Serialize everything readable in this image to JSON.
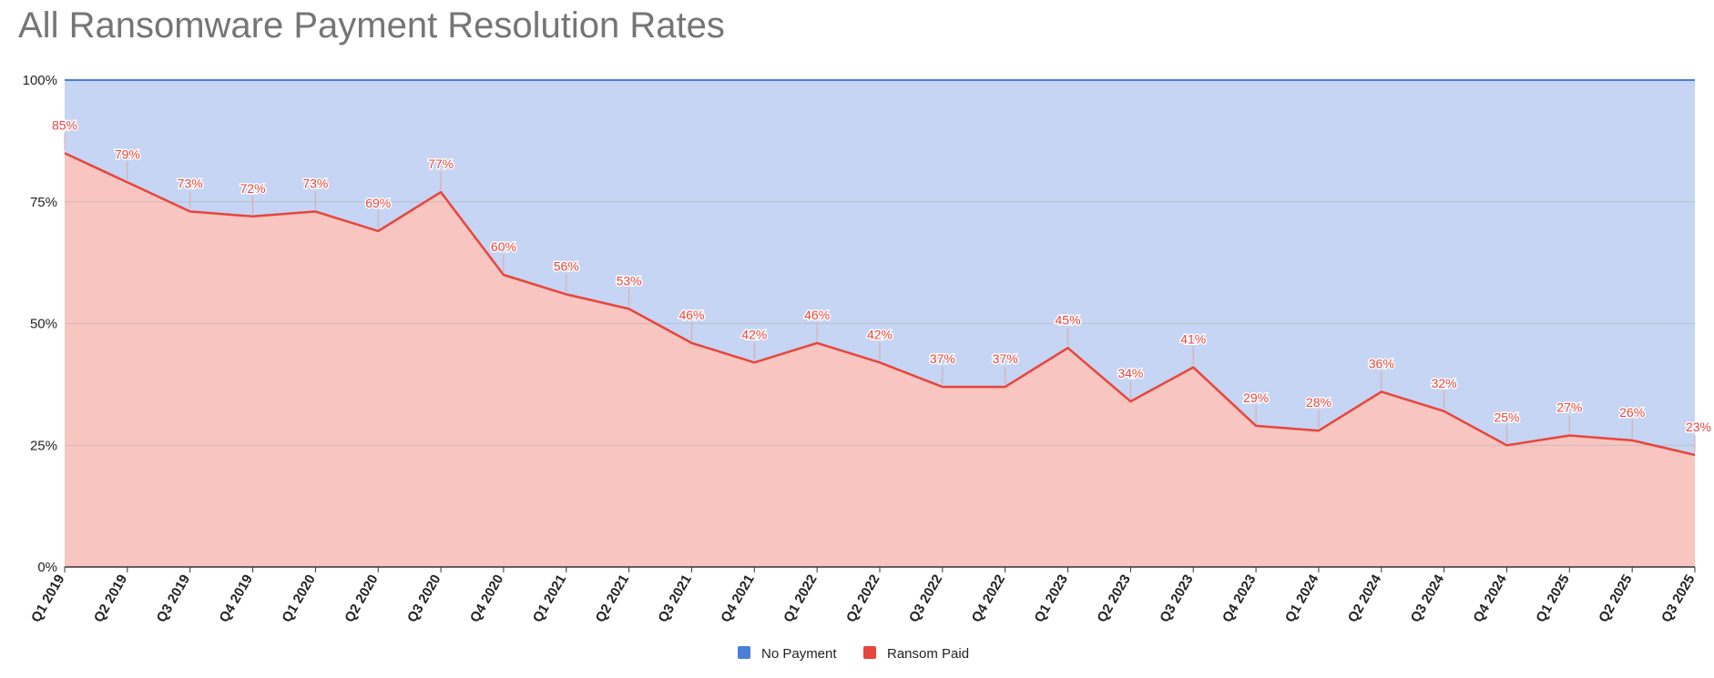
{
  "chart_data": {
    "type": "area",
    "title": "All Ransomware Payment Resolution Rates",
    "xlabel": "",
    "ylabel": "",
    "ylim": [
      0,
      100
    ],
    "yticks": [
      "0%",
      "25%",
      "50%",
      "75%",
      "100%"
    ],
    "categories": [
      "Q1 2019",
      "Q2 2019",
      "Q3 2019",
      "Q4 2019",
      "Q1 2020",
      "Q2 2020",
      "Q3 2020",
      "Q4 2020",
      "Q1 2021",
      "Q2 2021",
      "Q3 2021",
      "Q4 2021",
      "Q1 2022",
      "Q2 2022",
      "Q3 2022",
      "Q4 2022",
      "Q1 2023",
      "Q2 2023",
      "Q3 2023",
      "Q4 2023",
      "Q1 2024",
      "Q2 2024",
      "Q3 2024",
      "Q4 2024",
      "Q1 2025",
      "Q2 2025",
      "Q3 2025"
    ],
    "stacked_percent": true,
    "grid": true,
    "legend_position": "bottom",
    "series": [
      {
        "name": "No Payment",
        "color": "#4a7fd8",
        "fill": "#c5d5f3",
        "values": [
          15,
          21,
          27,
          28,
          27,
          31,
          23,
          40,
          44,
          47,
          54,
          58,
          54,
          58,
          63,
          63,
          55,
          66,
          59,
          71,
          72,
          64,
          68,
          75,
          73,
          74,
          77
        ]
      },
      {
        "name": "Ransom Paid",
        "color": "#e8453c",
        "fill": "#f8c5c0",
        "values": [
          85,
          79,
          73,
          72,
          73,
          69,
          77,
          60,
          56,
          53,
          46,
          42,
          46,
          42,
          37,
          37,
          45,
          34,
          41,
          29,
          28,
          36,
          32,
          25,
          27,
          26,
          23
        ],
        "data_labels": [
          "85%",
          "79%",
          "73%",
          "72%",
          "73%",
          "69%",
          "77%",
          "60%",
          "56%",
          "53%",
          "46%",
          "42%",
          "46%",
          "42%",
          "37%",
          "37%",
          "45%",
          "34%",
          "41%",
          "29%",
          "28%",
          "36%",
          "32%",
          "25%",
          "27%",
          "26%",
          "23%"
        ]
      }
    ]
  }
}
